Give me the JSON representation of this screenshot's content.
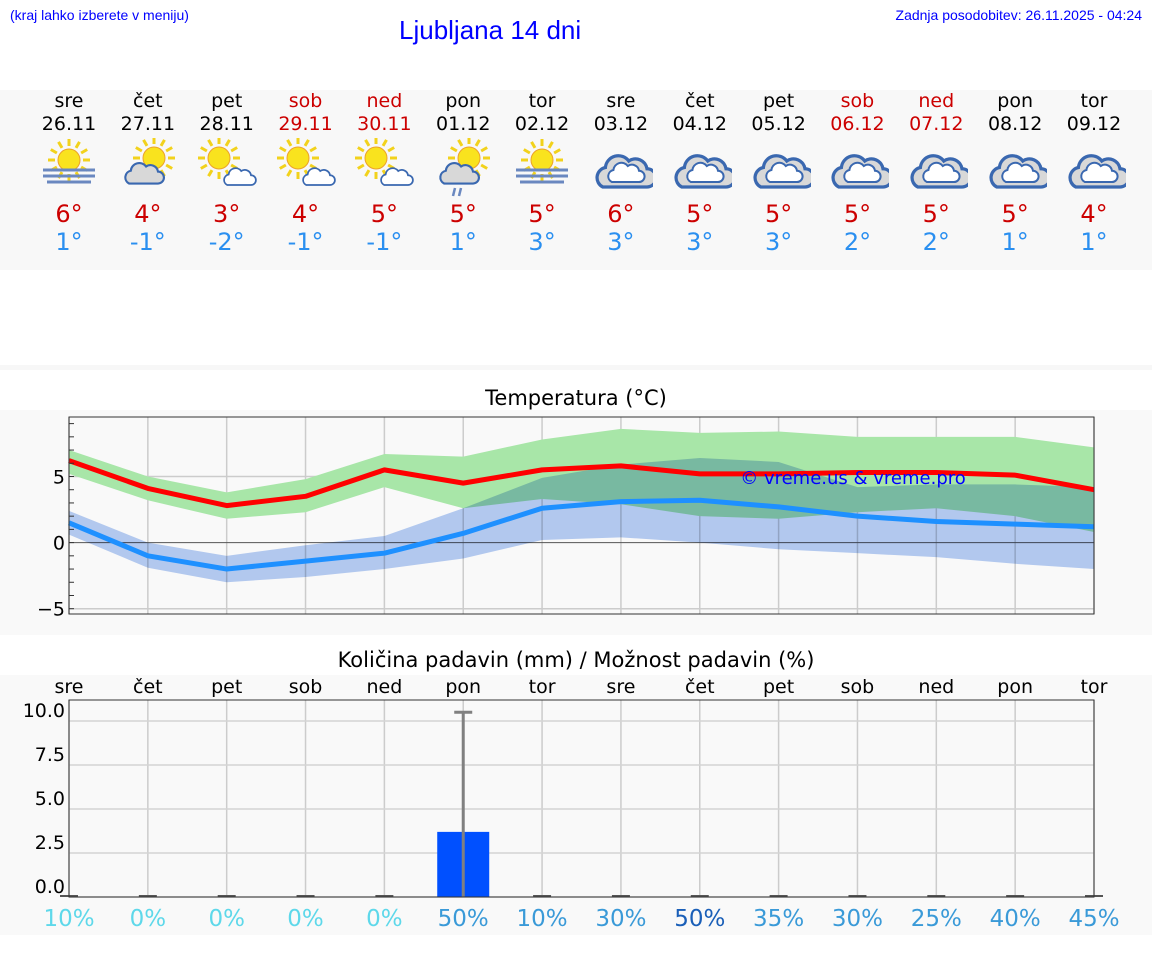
{
  "header": {
    "hint": "(kraj lahko izberete v meniju)",
    "title": "Ljubljana 14 dni",
    "updated": "Zadnja posodobitev: 26.11.2025 - 04:24"
  },
  "days": [
    {
      "name": "sre",
      "date": "26.11",
      "icon": "fog-sun",
      "max": "6°",
      "min": "1°",
      "weekend": false
    },
    {
      "name": "čet",
      "date": "27.11",
      "icon": "sun-cloud",
      "max": "4°",
      "min": "-1°",
      "weekend": false
    },
    {
      "name": "pet",
      "date": "28.11",
      "icon": "sun-small-cloud",
      "max": "3°",
      "min": "-2°",
      "weekend": false
    },
    {
      "name": "sob",
      "date": "29.11",
      "icon": "sun-small-cloud",
      "max": "4°",
      "min": "-1°",
      "weekend": true
    },
    {
      "name": "ned",
      "date": "30.11",
      "icon": "sun-small-cloud",
      "max": "5°",
      "min": "-1°",
      "weekend": true
    },
    {
      "name": "pon",
      "date": "01.12",
      "icon": "sun-cloud-rain",
      "max": "5°",
      "min": "1°",
      "weekend": false
    },
    {
      "name": "tor",
      "date": "02.12",
      "icon": "fog-sun",
      "max": "5°",
      "min": "3°",
      "weekend": false
    },
    {
      "name": "sre",
      "date": "03.12",
      "icon": "cloudy",
      "max": "6°",
      "min": "3°",
      "weekend": false
    },
    {
      "name": "čet",
      "date": "04.12",
      "icon": "cloudy",
      "max": "5°",
      "min": "3°",
      "weekend": false
    },
    {
      "name": "pet",
      "date": "05.12",
      "icon": "cloudy",
      "max": "5°",
      "min": "3°",
      "weekend": false
    },
    {
      "name": "sob",
      "date": "06.12",
      "icon": "cloudy",
      "max": "5°",
      "min": "2°",
      "weekend": true
    },
    {
      "name": "ned",
      "date": "07.12",
      "icon": "cloudy",
      "max": "5°",
      "min": "2°",
      "weekend": true
    },
    {
      "name": "pon",
      "date": "08.12",
      "icon": "cloudy",
      "max": "5°",
      "min": "1°",
      "weekend": false
    },
    {
      "name": "tor",
      "date": "09.12",
      "icon": "cloudy",
      "max": "4°",
      "min": "1°",
      "weekend": false
    }
  ],
  "colors": {
    "max": "#ff0000",
    "min": "#1e90ff",
    "max_band": "#a8e6a8",
    "min_band": "#a9c4f2",
    "overlap": "#7cc8a8",
    "bar": "#0050ff",
    "error": "#808080"
  },
  "chart_data": [
    {
      "type": "line",
      "title": "Temperatura (°C)",
      "watermark": "© vreme.us & vreme.pro",
      "ylim": [
        -5.4,
        9.5
      ],
      "yticks": [
        -5,
        0,
        5
      ],
      "ytick_labels": [
        "−5",
        "0",
        "5"
      ],
      "grid": true,
      "series": [
        {
          "key": "max",
          "values": [
            6.2,
            4.1,
            2.8,
            3.5,
            5.5,
            4.5,
            5.5,
            5.8,
            5.2,
            5.2,
            5.3,
            5.3,
            5.1,
            4.0
          ]
        },
        {
          "key": "max_upper",
          "values": [
            7.0,
            5.0,
            3.8,
            4.8,
            6.7,
            6.5,
            7.8,
            8.6,
            8.3,
            8.4,
            8.0,
            8.0,
            8.0,
            7.2
          ]
        },
        {
          "key": "max_lower",
          "values": [
            5.2,
            3.2,
            1.8,
            2.3,
            4.2,
            2.6,
            3.3,
            2.9,
            2.0,
            1.8,
            2.3,
            2.6,
            2.0,
            0.8
          ]
        },
        {
          "key": "min",
          "values": [
            1.5,
            -1.0,
            -2.0,
            -1.4,
            -0.8,
            0.7,
            2.6,
            3.1,
            3.2,
            2.7,
            2.0,
            1.6,
            1.4,
            1.2
          ]
        },
        {
          "key": "min_upper",
          "values": [
            2.4,
            0.0,
            -1.0,
            -0.2,
            0.5,
            2.6,
            4.9,
            5.9,
            6.4,
            6.1,
            4.2,
            4.4,
            4.4,
            4.2
          ]
        },
        {
          "key": "min_lower",
          "values": [
            0.6,
            -1.9,
            -3.0,
            -2.6,
            -2.0,
            -1.2,
            0.2,
            0.4,
            0.0,
            -0.5,
            -0.8,
            -1.1,
            -1.6,
            -2.0
          ]
        }
      ]
    },
    {
      "type": "bar",
      "title": "Količina padavin (mm) / Možnost padavin (%)",
      "categories": [
        "sre",
        "čet",
        "pet",
        "sob",
        "ned",
        "pon",
        "tor",
        "sre",
        "čet",
        "pet",
        "sob",
        "ned",
        "pon",
        "tor"
      ],
      "values": [
        0,
        0,
        0,
        0,
        0,
        3.7,
        0,
        0,
        0,
        0,
        0,
        0,
        0,
        0
      ],
      "error_upper": [
        0,
        0,
        0,
        0,
        0,
        10.5,
        0,
        0,
        0,
        0,
        0,
        0,
        0,
        0
      ],
      "ylim": [
        0,
        11
      ],
      "yticks": [
        0,
        2.5,
        5,
        7.5,
        10
      ],
      "ytick_labels": [
        "0.0",
        "2.5",
        "5.0",
        "7.5",
        "10.0"
      ],
      "grid": true,
      "probability": [
        "10%",
        "0%",
        "0%",
        "0%",
        "0%",
        "50%",
        "10%",
        "30%",
        "50%",
        "35%",
        "30%",
        "25%",
        "40%",
        "45%"
      ],
      "probability_colors": [
        "#5ed8ea",
        "#5ed8ea",
        "#5ed8ea",
        "#5ed8ea",
        "#5ed8ea",
        "#3a9ad8",
        "#3a9ad8",
        "#3a9ad8",
        "#1a5fb8",
        "#3a9ad8",
        "#3a9ad8",
        "#3a9ad8",
        "#3a9ad8",
        "#3a9ad8"
      ]
    }
  ]
}
